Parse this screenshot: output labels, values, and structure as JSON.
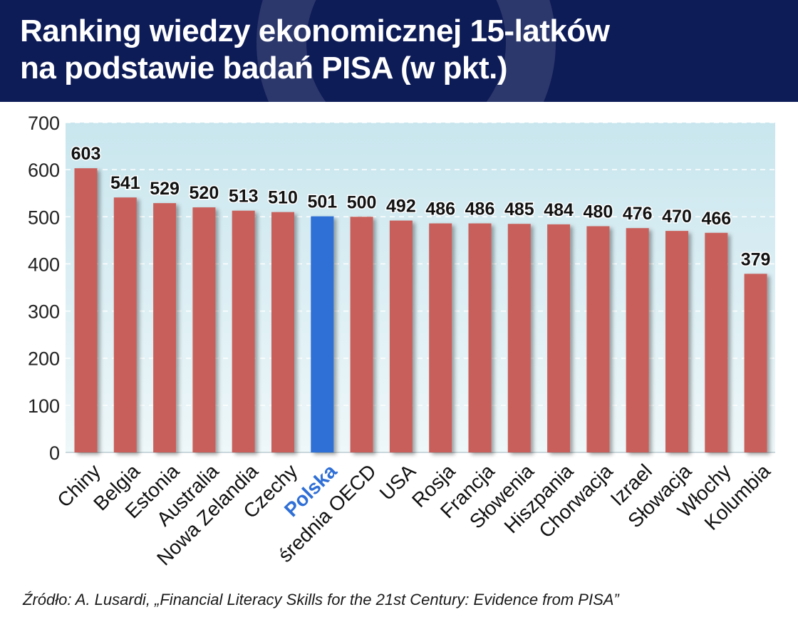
{
  "header": {
    "title_line1": "Ranking wiedzy ekonomicznej 15-latków",
    "title_line2": "na podstawie badań PISA (w pkt.)"
  },
  "footer": {
    "source": "Źródło: A. Lusardi, „Financial Literacy Skills for the 21st Century: Evidence from PISA”"
  },
  "colors": {
    "bar": "#c95f5a",
    "highlight_bar": "#2f6fd6",
    "highlight_label": "#2f6fd6",
    "header_bg": "#0d1b57",
    "plot_bg": "#cfe8ef"
  },
  "chart_data": {
    "type": "bar",
    "categories": [
      "Chiny",
      "Belgia",
      "Estonia",
      "Australia",
      "Nowa Zelandia",
      "Czechy",
      "Polska",
      "średnia OECD",
      "USA",
      "Rosja",
      "Francja",
      "Słowenia",
      "Hiszpania",
      "Chorwacja",
      "Izrael",
      "Słowacja",
      "Włochy",
      "Kolumbia"
    ],
    "values": [
      603,
      541,
      529,
      520,
      513,
      510,
      501,
      500,
      492,
      486,
      486,
      485,
      484,
      480,
      476,
      470,
      466,
      379
    ],
    "highlight": "Polska",
    "yticks": [
      0,
      100,
      200,
      300,
      400,
      500,
      600,
      700
    ],
    "ylim": [
      0,
      700
    ],
    "grid": true,
    "title": "Ranking wiedzy ekonomicznej 15-latków na podstawie badań PISA (w pkt.)"
  }
}
